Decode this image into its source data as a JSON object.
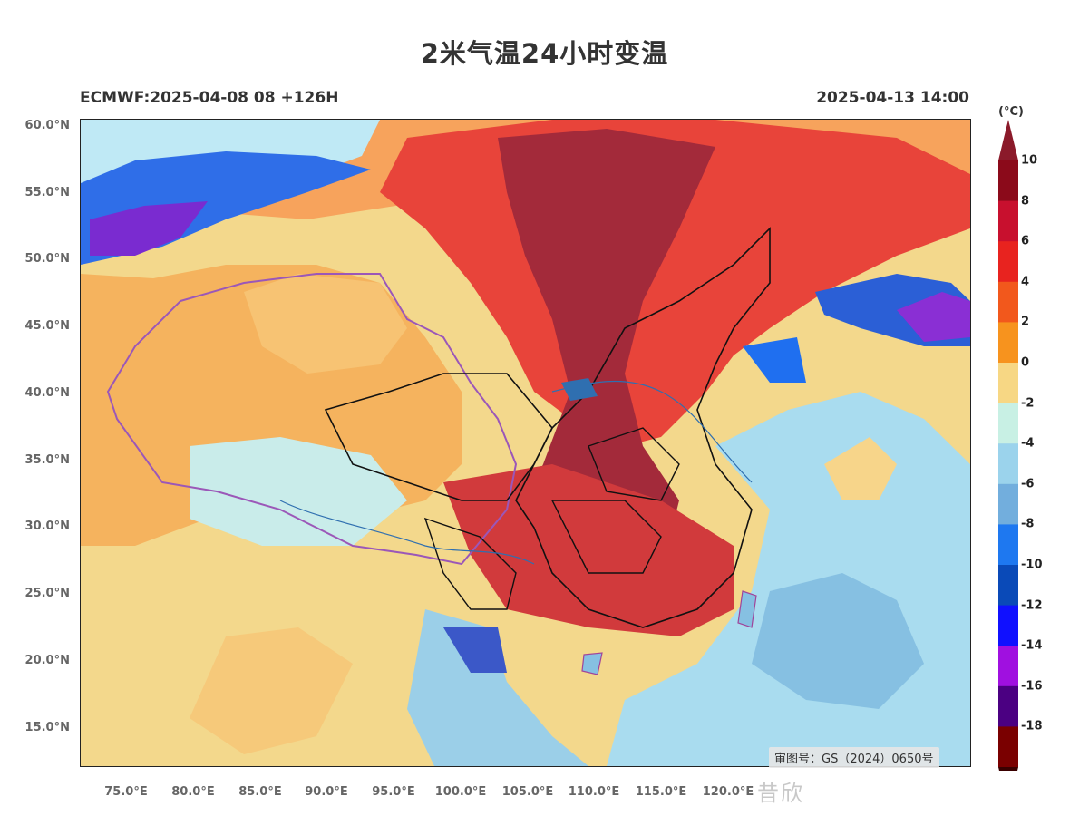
{
  "title": "2米气温24小时变温",
  "model_run": "ECMWF:2025-04-08 08 +126H",
  "valid_time": "2025-04-13 14:00",
  "lat_labels": [
    "60.0°N",
    "55.0°N",
    "50.0°N",
    "45.0°N",
    "40.0°N",
    "35.0°N",
    "30.0°N",
    "25.0°N",
    "20.0°N",
    "15.0°N"
  ],
  "lon_labels": [
    "75.0°E",
    "80.0°E",
    "85.0°E",
    "90.0°E",
    "95.0°E",
    "100.0°E",
    "105.0°E",
    "110.0°E",
    "115.0°E",
    "120.0°E"
  ],
  "colorbar": {
    "unit": "(°C)",
    "levels": [
      10,
      8,
      6,
      4,
      2,
      0,
      -2,
      -4,
      -6,
      -8,
      -10,
      -12,
      -14,
      -16,
      -18
    ],
    "tick_labels": [
      "10",
      "8",
      "6",
      "4",
      "2",
      "0",
      "-2",
      "-4",
      "-6",
      "-8",
      "-10",
      "-12",
      "-14",
      "-16",
      "-18"
    ],
    "colors": [
      "#8b0a1a",
      "#c8102e",
      "#e8231f",
      "#f2581c",
      "#f7931e",
      "#f7d784",
      "#c8f0e4",
      "#9bd3ec",
      "#72aedd",
      "#1e78f0",
      "#0a4ab8",
      "#1010ff",
      "#a010e0",
      "#4b0082",
      "#7a0000"
    ],
    "top_cap_color": "#8b1a2a",
    "bottom_cap_color": "#3a0000"
  },
  "approval_text": "审图号：GS（2024）0650号",
  "watermark_text": "昔欣"
}
